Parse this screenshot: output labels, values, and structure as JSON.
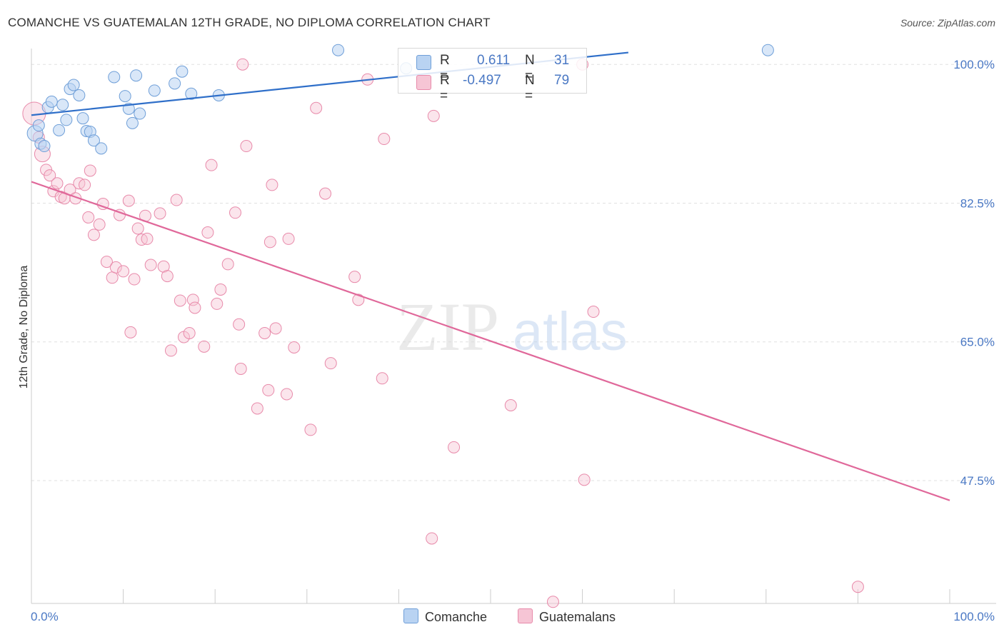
{
  "title": "COMANCHE VS GUATEMALAN 12TH GRADE, NO DIPLOMA CORRELATION CHART",
  "source": "Source: ZipAtlas.com",
  "watermark": {
    "part1": "ZIP",
    "part2": "atlas"
  },
  "legend": {
    "rows": [
      {
        "r_label": "R =",
        "r_value": "0.611",
        "n_label": "N =",
        "n_value": "31"
      },
      {
        "r_label": "R =",
        "r_value": "-0.497",
        "n_label": "N =",
        "n_value": "79"
      }
    ]
  },
  "bottom_legend": [
    "Comanche",
    "Guatemalans"
  ],
  "colors": {
    "comanche_fill": "#b9d3f2",
    "comanche_stroke": "#6f9fd8",
    "comanche_line": "#2f6fc9",
    "guatemalan_fill": "#f6c5d5",
    "guatemalan_stroke": "#e88aaa",
    "guatemalan_line": "#e0689a",
    "axis_text": "#4a78c4",
    "grid": "#e0e0e0"
  },
  "chart_data": {
    "type": "scatter",
    "title": "COMANCHE VS GUATEMALAN 12TH GRADE, NO DIPLOMA CORRELATION CHART",
    "xlabel": "",
    "ylabel": "12th Grade, No Diploma",
    "xlim": [
      0,
      100
    ],
    "ylim": [
      32,
      102
    ],
    "y_ticks": [
      100.0,
      82.5,
      65.0,
      47.5
    ],
    "y_tick_labels": [
      "100.0%",
      "82.5%",
      "65.0%",
      "47.5%"
    ],
    "x_tick_labels": [
      "0.0%",
      "100.0%"
    ],
    "grid": true,
    "legend_position": "top-center",
    "series": [
      {
        "name": "Comanche",
        "r": 0.611,
        "n": 31,
        "trend": {
          "x": [
            0,
            65
          ],
          "y": [
            93.6,
            101.5
          ]
        },
        "points": [
          [
            0.4,
            91.3
          ],
          [
            0.8,
            92.3
          ],
          [
            1.0,
            90.0
          ],
          [
            1.4,
            89.7
          ],
          [
            1.8,
            94.6
          ],
          [
            2.2,
            95.3
          ],
          [
            3.0,
            91.7
          ],
          [
            3.4,
            94.9
          ],
          [
            3.8,
            93.0
          ],
          [
            4.2,
            96.9
          ],
          [
            4.6,
            97.4
          ],
          [
            5.2,
            96.1
          ],
          [
            5.6,
            93.2
          ],
          [
            6.0,
            91.6
          ],
          [
            6.4,
            91.5
          ],
          [
            6.8,
            90.4
          ],
          [
            7.6,
            89.4
          ],
          [
            9.0,
            98.4
          ],
          [
            10.2,
            96.0
          ],
          [
            10.6,
            94.4
          ],
          [
            11.0,
            92.6
          ],
          [
            11.4,
            98.6
          ],
          [
            11.8,
            93.8
          ],
          [
            13.4,
            96.7
          ],
          [
            15.6,
            97.6
          ],
          [
            16.4,
            99.1
          ],
          [
            17.4,
            96.3
          ],
          [
            20.4,
            96.1
          ],
          [
            33.4,
            101.8
          ],
          [
            40.8,
            99.5
          ],
          [
            80.2,
            101.8
          ]
        ]
      },
      {
        "name": "Guatemalans",
        "r": -0.497,
        "n": 79,
        "trend": {
          "x": [
            0,
            100
          ],
          "y": [
            85.2,
            45.0
          ]
        },
        "points": [
          [
            0.3,
            93.8
          ],
          [
            0.8,
            90.8
          ],
          [
            1.2,
            88.7
          ],
          [
            1.6,
            86.7
          ],
          [
            2.0,
            86.0
          ],
          [
            2.4,
            84.0
          ],
          [
            2.8,
            85.0
          ],
          [
            3.2,
            83.3
          ],
          [
            3.6,
            83.1
          ],
          [
            4.2,
            84.2
          ],
          [
            4.8,
            83.1
          ],
          [
            5.2,
            85.0
          ],
          [
            5.8,
            84.8
          ],
          [
            6.2,
            80.7
          ],
          [
            6.4,
            86.6
          ],
          [
            6.8,
            78.5
          ],
          [
            7.4,
            79.8
          ],
          [
            7.8,
            82.4
          ],
          [
            8.2,
            75.1
          ],
          [
            8.8,
            73.1
          ],
          [
            9.2,
            74.4
          ],
          [
            9.6,
            81.0
          ],
          [
            10.0,
            73.9
          ],
          [
            10.6,
            82.8
          ],
          [
            10.8,
            66.2
          ],
          [
            11.2,
            72.9
          ],
          [
            11.6,
            79.3
          ],
          [
            12.0,
            77.9
          ],
          [
            12.4,
            80.9
          ],
          [
            12.6,
            78.0
          ],
          [
            13.0,
            74.7
          ],
          [
            14.0,
            81.2
          ],
          [
            14.4,
            74.5
          ],
          [
            14.8,
            73.3
          ],
          [
            15.2,
            63.9
          ],
          [
            15.8,
            82.9
          ],
          [
            16.2,
            70.2
          ],
          [
            16.6,
            65.6
          ],
          [
            17.2,
            66.1
          ],
          [
            17.6,
            70.3
          ],
          [
            17.8,
            69.3
          ],
          [
            18.8,
            64.4
          ],
          [
            19.2,
            78.8
          ],
          [
            19.6,
            87.3
          ],
          [
            20.2,
            69.8
          ],
          [
            20.6,
            71.6
          ],
          [
            21.4,
            74.8
          ],
          [
            22.2,
            81.3
          ],
          [
            22.6,
            67.2
          ],
          [
            22.8,
            61.6
          ],
          [
            23.0,
            100.0
          ],
          [
            23.4,
            89.7
          ],
          [
            24.6,
            56.6
          ],
          [
            25.4,
            66.1
          ],
          [
            25.8,
            58.9
          ],
          [
            26.0,
            77.6
          ],
          [
            26.2,
            84.8
          ],
          [
            26.6,
            66.7
          ],
          [
            27.8,
            58.4
          ],
          [
            28.0,
            78.0
          ],
          [
            28.6,
            64.3
          ],
          [
            30.4,
            53.9
          ],
          [
            31.0,
            94.5
          ],
          [
            32.0,
            83.7
          ],
          [
            32.6,
            62.3
          ],
          [
            35.2,
            73.2
          ],
          [
            35.6,
            70.3
          ],
          [
            36.6,
            98.1
          ],
          [
            38.2,
            60.4
          ],
          [
            38.4,
            90.6
          ],
          [
            43.8,
            93.5
          ],
          [
            43.6,
            40.2
          ],
          [
            46.0,
            51.7
          ],
          [
            52.2,
            57.0
          ],
          [
            56.8,
            32.2
          ],
          [
            60.0,
            100.0
          ],
          [
            60.2,
            47.6
          ],
          [
            61.2,
            68.8
          ],
          [
            90.0,
            34.1
          ]
        ]
      }
    ]
  }
}
